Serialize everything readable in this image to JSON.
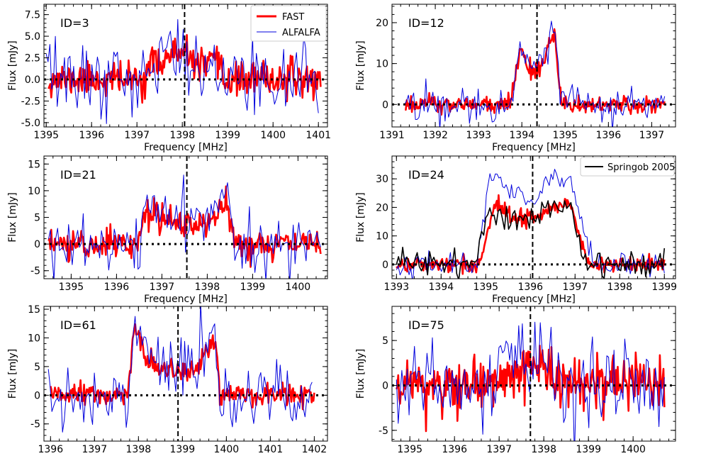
{
  "colors": {
    "fast": "#ff0000",
    "alfalfa": "#0000dd",
    "springob": "#000000"
  },
  "chart_data": [
    {
      "type": "line",
      "id_label": "ID=3",
      "xlabel": "Frequency [MHz]",
      "ylabel": "Flux [mJy]",
      "xlim": [
        1394.95,
        1401.2
      ],
      "ylim": [
        -5.5,
        8.7
      ],
      "xticks": [
        1395,
        1396,
        1397,
        1398,
        1399,
        1400,
        1401
      ],
      "xtick_labels": [
        "1395",
        "1396",
        "1397",
        "1398",
        "1399",
        "1400",
        "1401"
      ],
      "yticks": [
        -5.0,
        -2.5,
        0.0,
        2.5,
        5.0,
        7.5
      ],
      "ytick_labels": [
        "-5.0",
        "-2.5",
        "0.0",
        "2.5",
        "5.0",
        "7.5"
      ],
      "vline": 1398.05,
      "legend": {
        "entries": [
          "FAST",
          "ALFALFA"
        ],
        "position": "top-right"
      },
      "series": [
        {
          "name": "FAST",
          "color": "#ff0000",
          "xstart": 1395.05,
          "xend": 1401.05,
          "signal": [
            [
              1397.2,
              1.6
            ],
            [
              1397.5,
              2.0
            ],
            [
              1397.8,
              3.0
            ],
            [
              1398.1,
              2.6
            ],
            [
              1398.4,
              1.6
            ],
            [
              1398.7,
              1.8
            ],
            [
              1398.9,
              0.8
            ]
          ],
          "noise": 0.95,
          "n": 300,
          "seed": 11
        },
        {
          "name": "ALFALFA",
          "color": "#0000dd",
          "xstart": 1395.0,
          "xend": 1401.0,
          "signal": [
            [
              1397.2,
              2.0
            ],
            [
              1397.4,
              3.0
            ],
            [
              1397.7,
              1.6
            ],
            [
              1398.1,
              2.6
            ],
            [
              1398.5,
              1.4
            ],
            [
              1398.8,
              1.6
            ],
            [
              1399.0,
              0.8
            ]
          ],
          "noise": 2.1,
          "n": 150,
          "seed": 12
        }
      ]
    },
    {
      "type": "line",
      "id_label": "ID=12",
      "xlabel": "Frequency [MHz]",
      "ylabel": "Flux [mJy]",
      "xlim": [
        1391.0,
        1397.55
      ],
      "ylim": [
        -5.5,
        24.5
      ],
      "xticks": [
        1391,
        1392,
        1393,
        1394,
        1395,
        1396,
        1397
      ],
      "xtick_labels": [
        "1391",
        "1392",
        "1393",
        "1394",
        "1395",
        "1396",
        "1397"
      ],
      "yticks": [
        0,
        10,
        20
      ],
      "ytick_labels": [
        "0",
        "10",
        "20"
      ],
      "vline": 1394.35,
      "series": [
        {
          "name": "FAST",
          "color": "#ff0000",
          "xstart": 1391.3,
          "xend": 1397.3,
          "signal": [
            [
              1393.75,
              0.0
            ],
            [
              1393.95,
              14.0
            ],
            [
              1394.15,
              9.0
            ],
            [
              1394.35,
              8.0
            ],
            [
              1394.55,
              12.0
            ],
            [
              1394.75,
              17.5
            ],
            [
              1394.9,
              0.5
            ]
          ],
          "noise": 1.1,
          "n": 300,
          "seed": 21
        },
        {
          "name": "ALFALFA",
          "color": "#0000dd",
          "xstart": 1391.3,
          "xend": 1397.3,
          "signal": [
            [
              1393.75,
              0.0
            ],
            [
              1393.95,
              16.0
            ],
            [
              1394.15,
              10.0
            ],
            [
              1394.35,
              8.0
            ],
            [
              1394.55,
              13.0
            ],
            [
              1394.75,
              21.0
            ],
            [
              1394.9,
              0.5
            ]
          ],
          "noise": 2.0,
          "n": 150,
          "seed": 22
        }
      ]
    },
    {
      "type": "line",
      "id_label": "ID=21",
      "xlabel": "Frequency [MHz]",
      "ylabel": "Flux [mJy]",
      "xlim": [
        1394.4,
        1400.65
      ],
      "ylim": [
        -6.5,
        16.5
      ],
      "xticks": [
        1395,
        1396,
        1397,
        1398,
        1399,
        1400
      ],
      "xtick_labels": [
        "1395",
        "1396",
        "1397",
        "1398",
        "1399",
        "1400"
      ],
      "yticks": [
        -5,
        0,
        5,
        10,
        15
      ],
      "ytick_labels": [
        "-5",
        "0",
        "5",
        "10",
        "15"
      ],
      "vline": 1397.55,
      "series": [
        {
          "name": "FAST",
          "color": "#ff0000",
          "xstart": 1394.5,
          "xend": 1400.5,
          "signal": [
            [
              1396.5,
              0.0
            ],
            [
              1396.6,
              6.5
            ],
            [
              1397.0,
              4.5
            ],
            [
              1397.5,
              3.5
            ],
            [
              1398.0,
              4.0
            ],
            [
              1398.45,
              7.0
            ],
            [
              1398.6,
              0.5
            ]
          ],
          "noise": 1.3,
          "n": 300,
          "seed": 31
        },
        {
          "name": "ALFALFA",
          "color": "#0000dd",
          "xstart": 1394.5,
          "xend": 1400.5,
          "signal": [
            [
              1396.5,
              0.0
            ],
            [
              1396.6,
              8.5
            ],
            [
              1397.0,
              5.5
            ],
            [
              1397.5,
              4.0
            ],
            [
              1398.0,
              5.0
            ],
            [
              1398.45,
              10.0
            ],
            [
              1398.6,
              0.5
            ]
          ],
          "noise": 2.4,
          "n": 150,
          "seed": 32
        }
      ]
    },
    {
      "type": "line",
      "id_label": "ID=24",
      "xlabel": "Frequency [MHz]",
      "ylabel": "Flux [mJy]",
      "xlim": [
        1392.9,
        1399.25
      ],
      "ylim": [
        -5.0,
        38.0
      ],
      "xticks": [
        1393,
        1394,
        1395,
        1396,
        1397,
        1398,
        1399
      ],
      "xtick_labels": [
        "1393",
        "1394",
        "1395",
        "1396",
        "1397",
        "1398",
        "1399"
      ],
      "yticks": [
        0,
        10,
        20,
        30
      ],
      "ytick_labels": [
        "0",
        "10",
        "20",
        "30"
      ],
      "vline": 1396.05,
      "legend": {
        "entries": [
          "Springob 2005"
        ],
        "position": "top-right"
      },
      "series": [
        {
          "name": "FAST",
          "color": "#ff0000",
          "xstart": 1393.0,
          "xend": 1399.0,
          "signal": [
            [
              1394.85,
              0.0
            ],
            [
              1395.2,
              21.0
            ],
            [
              1395.6,
              16.5
            ],
            [
              1396.1,
              17.0
            ],
            [
              1396.4,
              19.0
            ],
            [
              1396.85,
              22.0
            ],
            [
              1397.3,
              0.5
            ]
          ],
          "noise": 1.3,
          "n": 300,
          "seed": 41
        },
        {
          "name": "ALFALFA",
          "color": "#0000dd",
          "xstart": 1393.0,
          "xend": 1399.0,
          "signal": [
            [
              1394.8,
              0.0
            ],
            [
              1395.1,
              33.0
            ],
            [
              1395.6,
              24.0
            ],
            [
              1396.1,
              23.0
            ],
            [
              1396.5,
              31.0
            ],
            [
              1396.9,
              29.0
            ],
            [
              1397.4,
              0.5
            ]
          ],
          "noise": 2.0,
          "n": 150,
          "seed": 42
        },
        {
          "name": "Springob 2005",
          "color": "#000000",
          "xstart": 1393.0,
          "xend": 1399.0,
          "signal": [
            [
              1394.75,
              0.0
            ],
            [
              1395.1,
              19.0
            ],
            [
              1395.6,
              15.0
            ],
            [
              1396.1,
              17.0
            ],
            [
              1396.5,
              20.0
            ],
            [
              1396.9,
              21.0
            ],
            [
              1397.2,
              0.5
            ]
          ],
          "noise": 2.6,
          "n": 130,
          "seed": 43
        }
      ]
    },
    {
      "type": "line",
      "id_label": "ID=61",
      "xlabel": "Frequency [MHz]",
      "ylabel": "Flux [mJy]",
      "xlim": [
        1395.85,
        1402.3
      ],
      "ylim": [
        -8.0,
        15.5
      ],
      "xticks": [
        1396,
        1397,
        1398,
        1399,
        1400,
        1401,
        1402
      ],
      "xtick_labels": [
        "1396",
        "1397",
        "1398",
        "1399",
        "1400",
        "1401",
        "1402"
      ],
      "yticks": [
        -5,
        0,
        5,
        10,
        15
      ],
      "ytick_labels": [
        "-5",
        "0",
        "5",
        "10",
        "15"
      ],
      "vline": 1398.9,
      "series": [
        {
          "name": "FAST",
          "color": "#ff0000",
          "xstart": 1396.0,
          "xend": 1402.0,
          "signal": [
            [
              1397.75,
              0.0
            ],
            [
              1397.9,
              12.0
            ],
            [
              1398.2,
              6.0
            ],
            [
              1398.7,
              4.0
            ],
            [
              1399.3,
              4.0
            ],
            [
              1399.75,
              10.0
            ],
            [
              1399.85,
              0.5
            ]
          ],
          "noise": 0.9,
          "n": 300,
          "seed": 51
        },
        {
          "name": "ALFALFA",
          "color": "#0000dd",
          "xstart": 1395.95,
          "xend": 1401.95,
          "signal": [
            [
              1397.75,
              0.0
            ],
            [
              1397.9,
              11.0
            ],
            [
              1398.2,
              8.0
            ],
            [
              1398.7,
              5.0
            ],
            [
              1399.3,
              6.0
            ],
            [
              1399.75,
              12.0
            ],
            [
              1399.85,
              0.5
            ]
          ],
          "noise": 2.6,
          "n": 150,
          "seed": 52
        }
      ]
    },
    {
      "type": "line",
      "id_label": "ID=75",
      "xlabel": "Frequency [MHz]",
      "ylabel": "Flux [mJy]",
      "xlim": [
        1394.6,
        1400.95
      ],
      "ylim": [
        -6.2,
        8.8
      ],
      "xticks": [
        1395,
        1396,
        1397,
        1398,
        1399,
        1400
      ],
      "xtick_labels": [
        "1395",
        "1396",
        "1397",
        "1398",
        "1399",
        "1400"
      ],
      "yticks": [
        -5,
        0,
        5
      ],
      "ytick_labels": [
        "-5",
        "0",
        "5"
      ],
      "vline": 1397.7,
      "series": [
        {
          "name": "FAST",
          "color": "#ff0000",
          "xstart": 1394.7,
          "xend": 1400.7,
          "signal": [
            [
              1396.8,
              0.5
            ],
            [
              1397.2,
              1.5
            ],
            [
              1397.6,
              2.5
            ],
            [
              1398.0,
              1.5
            ],
            [
              1398.4,
              0.3
            ]
          ],
          "noise": 1.5,
          "n": 300,
          "seed": 61
        },
        {
          "name": "ALFALFA",
          "color": "#0000dd",
          "xstart": 1394.7,
          "xend": 1400.7,
          "signal": [
            [
              1396.8,
              1.0
            ],
            [
              1397.2,
              2.5
            ],
            [
              1397.6,
              3.5
            ],
            [
              1398.0,
              2.0
            ],
            [
              1398.4,
              0.5
            ]
          ],
          "noise": 2.6,
          "n": 150,
          "seed": 62
        }
      ]
    }
  ]
}
